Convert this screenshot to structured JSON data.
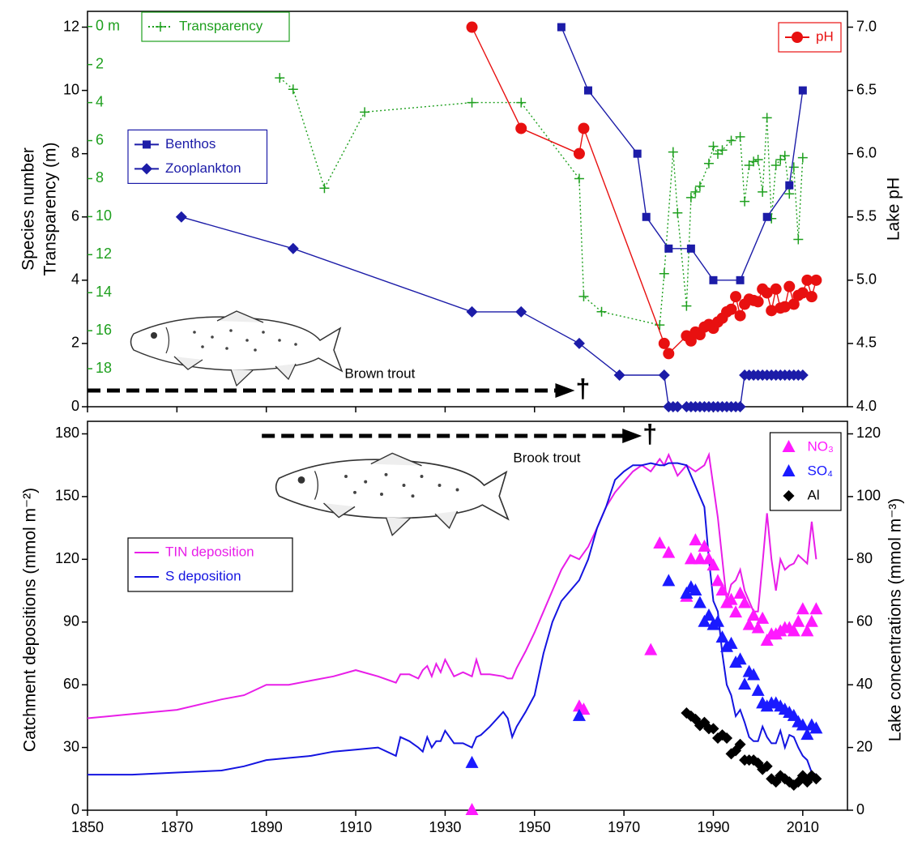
{
  "chart_data": [
    {
      "type": "line",
      "ylabel": "Species number",
      "y3label": "Transparency (m)",
      "y2label": "Lake pH",
      "xlim": [
        1850,
        2020
      ],
      "ylim": [
        0,
        12.5
      ],
      "yticks": [
        0,
        2,
        4,
        6,
        8,
        10,
        12
      ],
      "y2lim": [
        4,
        7.125
      ],
      "y2ticks": [
        {
          "value": 4,
          "label": "4.0"
        },
        4.5,
        {
          "value": 5,
          "label": "5.0"
        },
        5.5,
        {
          "value": 6,
          "label": "6.0"
        },
        6.5,
        {
          "value": 7,
          "label": "7.0"
        }
      ],
      "y3lim": [
        20,
        -0.8
      ],
      "y3color": "#1fa01f",
      "y3ticks": [
        {
          "value": 0,
          "label": "0 m"
        },
        2,
        4,
        6,
        8,
        10,
        12,
        14,
        16,
        18
      ],
      "series": [
        {
          "name": "Transparency",
          "color": "#1fa01f",
          "marker": "plus",
          "line": "dotted",
          "axis": "y3",
          "legend": "upper left",
          "x": [
            1893,
            1896,
            1903,
            1912,
            1936,
            1947,
            1960,
            1961,
            1965,
            1978,
            1979,
            1981,
            1982,
            1984,
            1985,
            1986,
            1987,
            1989,
            1990,
            1991,
            1992,
            1994,
            1996,
            1997,
            1998,
            1999,
            2000,
            2001,
            2002,
            2003,
            2004,
            2005,
            2006,
            2007,
            2008,
            2009,
            2010
          ],
          "values": [
            2.7,
            3.3,
            8.5,
            4.5,
            4.0,
            4.0,
            8.0,
            14.2,
            15.0,
            15.7,
            13.0,
            6.6,
            9.8,
            14.7,
            9.0,
            8.7,
            8.4,
            7.2,
            6.3,
            6.7,
            6.5,
            6.0,
            5.8,
            9.2,
            7.3,
            7.1,
            7.0,
            8.7,
            4.8,
            10.1,
            7.3,
            7.0,
            6.8,
            8.8,
            7.4,
            11.2,
            6.9
          ]
        },
        {
          "name": "pH",
          "color": "#e81010",
          "marker": "circle",
          "line": "solid",
          "axis": "y2",
          "legend": "upper right",
          "x": [
            1936,
            1947,
            1960,
            1961,
            1979,
            1980,
            1984,
            1985,
            1986,
            1987,
            1988,
            1989,
            1990,
            1991,
            1992,
            1993,
            1994,
            1995,
            1996,
            1997,
            1998,
            1999,
            2000,
            2001,
            2002,
            2003,
            2004,
            2005,
            2006,
            2007,
            2008,
            2009,
            2010,
            2011,
            2012,
            2013
          ],
          "values": [
            7.0,
            6.2,
            6.0,
            6.2,
            4.5,
            4.42,
            4.56,
            4.52,
            4.59,
            4.57,
            4.63,
            4.65,
            4.62,
            4.67,
            4.7,
            4.75,
            4.77,
            4.87,
            4.72,
            4.81,
            4.85,
            4.84,
            4.83,
            4.93,
            4.9,
            4.76,
            4.93,
            4.78,
            4.79,
            4.95,
            4.81,
            4.88,
            4.9,
            5.0,
            4.87,
            5.0
          ]
        },
        {
          "name": "Benthos",
          "color": "#1c1ca8",
          "marker": "square",
          "line": "solid",
          "axis": "y",
          "legend": "center left",
          "x": [
            1956,
            1962,
            1973,
            1975,
            1980,
            1985,
            1990,
            1996,
            2002,
            2007,
            2010
          ],
          "values": [
            12,
            10,
            8,
            6,
            5,
            5,
            4,
            4,
            6,
            7,
            10
          ]
        },
        {
          "name": "Zooplankton",
          "color": "#1c1ca8",
          "marker": "diamond",
          "line": "solid",
          "axis": "y",
          "legend": "center left",
          "x": [
            1871,
            1896,
            1936,
            1947,
            1960,
            1969,
            1979,
            1980,
            1981,
            1982,
            1984,
            1985,
            1986,
            1987,
            1988,
            1989,
            1990,
            1991,
            1992,
            1993,
            1994,
            1995,
            1996,
            1997,
            1998,
            1999,
            2000,
            2001,
            2002,
            2003,
            2004,
            2005,
            2006,
            2007,
            2008,
            2009,
            2010
          ],
          "values": [
            6,
            5,
            3,
            3,
            2,
            1,
            1,
            0,
            0,
            0,
            0,
            0,
            0,
            0,
            0,
            0,
            0,
            0,
            0,
            0,
            0,
            0,
            0,
            1,
            1,
            1,
            1,
            1,
            1,
            1,
            1,
            1,
            1,
            1,
            1,
            1,
            1
          ]
        }
      ],
      "annotations": [
        {
          "text": "Brown trout",
          "symbol": "†",
          "x": [
            1850,
            1959
          ]
        }
      ]
    },
    {
      "type": "line",
      "ylabel": "Catchment depositions (mmol m⁻²)",
      "y2label": "Lake concentrations (mmol m⁻³)",
      "xlim": [
        1850,
        2020
      ],
      "xticks": [
        1850,
        1870,
        1890,
        1910,
        1930,
        1950,
        1970,
        1990,
        2010
      ],
      "ylim": [
        0,
        186
      ],
      "yticks": [
        0,
        30,
        60,
        90,
        120,
        150,
        180
      ],
      "y2lim": [
        0,
        124
      ],
      "y2ticks": [
        0,
        20,
        40,
        60,
        80,
        100,
        120
      ],
      "series": [
        {
          "name": "TIN deposition",
          "color": "#e81ee8",
          "line": "solid",
          "axis": "y",
          "legend": "center left",
          "x": [
            1850,
            1860,
            1870,
            1880,
            1885,
            1890,
            1895,
            1900,
            1905,
            1910,
            1915,
            1919,
            1920,
            1922,
            1924,
            1925,
            1926,
            1927,
            1928,
            1929,
            1930,
            1932,
            1934,
            1936,
            1937,
            1938,
            1940,
            1943,
            1944,
            1945,
            1946,
            1948,
            1950,
            1952,
            1954,
            1956,
            1958,
            1960,
            1962,
            1964,
            1966,
            1968,
            1970,
            1972,
            1974,
            1976,
            1978,
            1979,
            1980,
            1982,
            1984,
            1986,
            1988,
            1989,
            1990,
            1991,
            1992,
            1993,
            1994,
            1995,
            1996,
            1997,
            1998,
            1999,
            2000,
            2001,
            2002,
            2003,
            2004,
            2005,
            2006,
            2007,
            2008,
            2009,
            2010,
            2011,
            2012,
            2013
          ],
          "values": [
            44,
            46,
            48,
            53,
            55,
            60,
            60,
            62,
            64,
            67,
            64,
            61,
            65,
            65,
            63,
            67,
            69,
            64,
            70,
            66,
            72,
            64,
            66,
            64,
            72,
            65,
            65,
            64,
            63,
            63,
            68,
            76,
            85,
            95,
            105,
            115,
            122,
            120,
            126,
            135,
            145,
            152,
            157,
            162,
            165,
            162,
            168,
            165,
            170,
            160,
            165,
            162,
            165,
            170,
            155,
            140,
            120,
            100,
            108,
            110,
            115,
            105,
            100,
            95,
            95,
            118,
            142,
            120,
            105,
            120,
            115,
            117,
            118,
            122,
            120,
            118,
            138,
            120
          ]
        },
        {
          "name": "S deposition",
          "color": "#1414e0",
          "line": "solid",
          "axis": "y",
          "legend": "center left",
          "x": [
            1850,
            1860,
            1870,
            1880,
            1885,
            1890,
            1895,
            1900,
            1905,
            1910,
            1915,
            1919,
            1920,
            1922,
            1924,
            1925,
            1926,
            1927,
            1928,
            1929,
            1930,
            1932,
            1934,
            1936,
            1937,
            1938,
            1940,
            1943,
            1944,
            1945,
            1946,
            1948,
            1950,
            1952,
            1954,
            1956,
            1958,
            1960,
            1962,
            1964,
            1966,
            1968,
            1970,
            1972,
            1974,
            1976,
            1978,
            1979,
            1980,
            1982,
            1984,
            1986,
            1988,
            1989,
            1990,
            1991,
            1992,
            1993,
            1994,
            1995,
            1996,
            1997,
            1998,
            1999,
            2000,
            2001,
            2002,
            2003,
            2004,
            2005,
            2006,
            2007,
            2008,
            2009,
            2010,
            2011,
            2012,
            2013
          ],
          "values": [
            17,
            17,
            18,
            19,
            21,
            24,
            25,
            26,
            28,
            29,
            30,
            26,
            35,
            33,
            30,
            28,
            35,
            30,
            33,
            33,
            38,
            32,
            32,
            30,
            35,
            36,
            40,
            47,
            44,
            35,
            40,
            47,
            55,
            75,
            90,
            100,
            105,
            110,
            120,
            135,
            145,
            158,
            162,
            165,
            165,
            166,
            165,
            165,
            166,
            166,
            165,
            155,
            145,
            120,
            100,
            95,
            75,
            60,
            55,
            45,
            48,
            42,
            35,
            33,
            33,
            40,
            35,
            32,
            32,
            38,
            30,
            36,
            35,
            30,
            26,
            24,
            18,
            17
          ]
        },
        {
          "name": "NO₃",
          "color": "#ff1aff",
          "marker": "triangle",
          "axis": "y2",
          "legend": "upper right",
          "x": [
            1936,
            1960,
            1961,
            1976,
            1978,
            1980,
            1984,
            1985,
            1986,
            1987,
            1988,
            1989,
            1990,
            1991,
            1992,
            1993,
            1994,
            1995,
            1996,
            1997,
            1998,
            1999,
            2000,
            2001,
            2002,
            2003,
            2004,
            2005,
            2006,
            2007,
            2008,
            2009,
            2010,
            2011,
            2012,
            2013
          ],
          "values": [
            0,
            33,
            32,
            51,
            85,
            82,
            68,
            80,
            86,
            80,
            84,
            80,
            78,
            73,
            70,
            66,
            67,
            63,
            69,
            66,
            59,
            62,
            58,
            61,
            54,
            56,
            56,
            57,
            58,
            58,
            57,
            60,
            64,
            57,
            60,
            64
          ]
        },
        {
          "name": "SO₄",
          "color": "#1a1aff",
          "marker": "triangle",
          "axis": "y2",
          "legend": "upper right",
          "x": [
            1936,
            1960,
            1980,
            1984,
            1985,
            1986,
            1987,
            1988,
            1989,
            1990,
            1991,
            1992,
            1993,
            1994,
            1995,
            1996,
            1997,
            1998,
            1999,
            2000,
            2001,
            2002,
            2003,
            2004,
            2005,
            2006,
            2007,
            2008,
            2009,
            2010,
            2011,
            2012,
            2013
          ],
          "values": [
            15,
            30,
            73,
            69,
            71,
            70,
            66,
            60,
            62,
            59,
            60,
            55,
            52,
            53,
            47,
            48,
            40,
            44,
            43,
            38,
            34,
            33,
            34,
            34,
            33,
            32,
            31,
            30,
            28,
            27,
            24,
            27,
            26
          ]
        },
        {
          "name": "Al",
          "color": "#000000",
          "marker": "diamond",
          "axis": "y2",
          "legend": "upper right",
          "x": [
            1984,
            1985,
            1986,
            1987,
            1988,
            1989,
            1990,
            1991,
            1992,
            1993,
            1994,
            1995,
            1996,
            1997,
            1998,
            1999,
            2000,
            2001,
            2002,
            2003,
            2004,
            2005,
            2006,
            2007,
            2008,
            2009,
            2010,
            2011,
            2012,
            2013
          ],
          "values": [
            31,
            30,
            29,
            27,
            28,
            26,
            26,
            23,
            24,
            23,
            18,
            19,
            21,
            16,
            16,
            16,
            15,
            13,
            14,
            10,
            9,
            11,
            10,
            9,
            8,
            9,
            11,
            9,
            11,
            10
          ]
        }
      ],
      "annotations": [
        {
          "text": "Brook trout",
          "symbol": "†",
          "x": [
            1889,
            1974
          ]
        }
      ]
    }
  ]
}
